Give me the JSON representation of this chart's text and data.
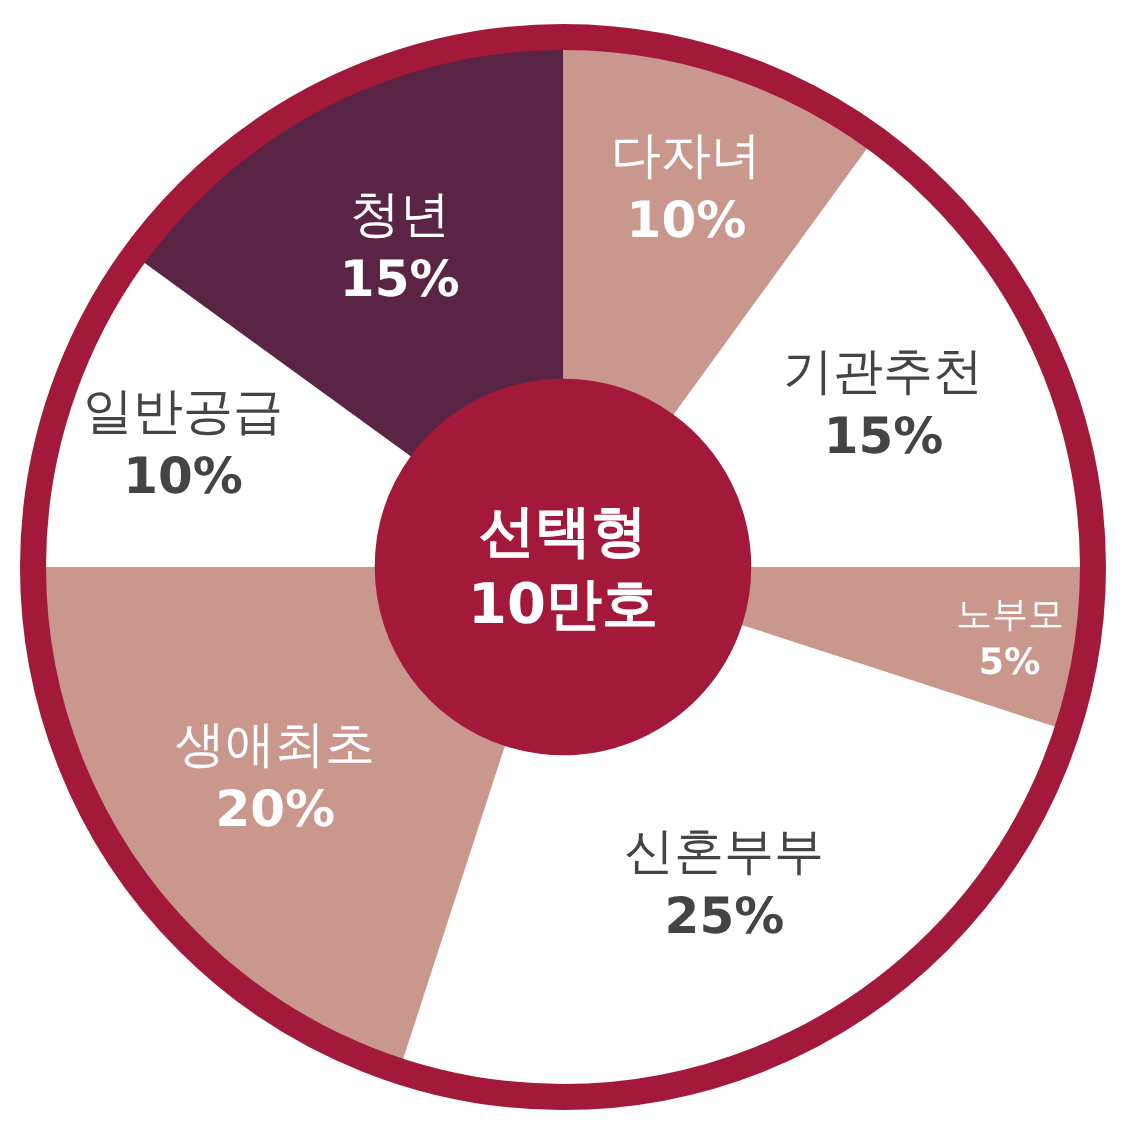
{
  "chart_data": {
    "type": "donut",
    "categories": [
      "다자녀",
      "기관추천",
      "노부모",
      "신혼부부",
      "생애최초",
      "일반공급",
      "청년"
    ],
    "values": [
      10,
      15,
      5,
      25,
      20,
      10,
      15
    ],
    "value_labels": [
      "10%",
      "15%",
      "5%",
      "25%",
      "20%",
      "10%",
      "15%"
    ],
    "colors": [
      "#c9978c",
      "#ffffff",
      "#c9978c",
      "#ffffff",
      "#c9978c",
      "#ffffff",
      "#5a2444"
    ],
    "annotations": [
      "선택형\n10만호"
    ],
    "legend": false
  }
}
